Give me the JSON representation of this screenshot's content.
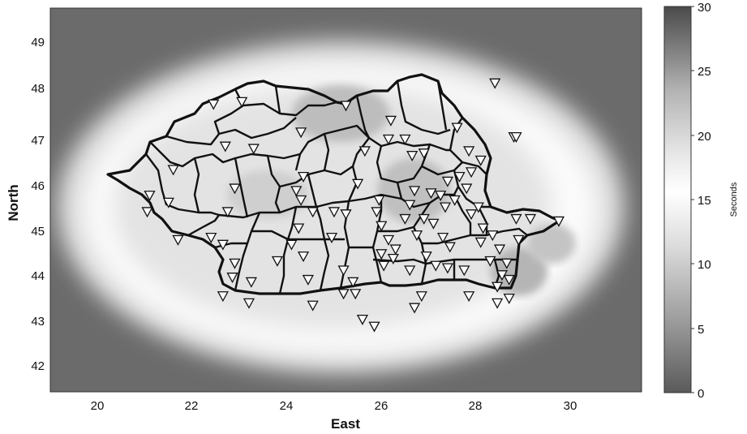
{
  "map": {
    "xlabel": "East",
    "ylabel": "North",
    "xlim": [
      19,
      31.5
    ],
    "ylim": [
      41.5,
      49.7
    ],
    "x_ticks": [
      "20",
      "22",
      "24",
      "26",
      "28",
      "30"
    ],
    "y_ticks": [
      "42",
      "43",
      "44",
      "45",
      "46",
      "47",
      "48",
      "49"
    ],
    "x_tick_values": [
      20,
      22,
      24,
      26,
      28,
      30
    ],
    "y_tick_values": [
      42,
      43,
      44,
      45,
      46,
      47,
      48,
      49
    ],
    "background_color": "#6b6b6b",
    "halo_color": "#f2f2f2",
    "border_color": "#111111",
    "colorbar": {
      "label": "Seconds",
      "range": [
        0,
        30
      ],
      "ticks": [
        "0",
        "5",
        "10",
        "15",
        "20",
        "25",
        "30"
      ],
      "tick_values": [
        0,
        5,
        10,
        15,
        20,
        25,
        30
      ]
    },
    "stations": [
      [
        22.45,
        47.65
      ],
      [
        23.05,
        47.7
      ],
      [
        25.25,
        47.62
      ],
      [
        26.2,
        47.3
      ],
      [
        24.3,
        47.05
      ],
      [
        23.3,
        46.7
      ],
      [
        22.7,
        46.75
      ],
      [
        21.6,
        46.25
      ],
      [
        21.1,
        45.7
      ],
      [
        21.5,
        45.55
      ],
      [
        21.05,
        45.35
      ],
      [
        21.7,
        44.75
      ],
      [
        22.4,
        44.8
      ],
      [
        22.65,
        44.65
      ],
      [
        22.9,
        44.25
      ],
      [
        22.85,
        43.95
      ],
      [
        23.25,
        43.85
      ],
      [
        22.65,
        43.55
      ],
      [
        23.2,
        43.4
      ],
      [
        22.9,
        45.85
      ],
      [
        22.75,
        45.35
      ],
      [
        24.35,
        46.1
      ],
      [
        24.2,
        45.8
      ],
      [
        24.3,
        45.6
      ],
      [
        24.55,
        45.35
      ],
      [
        24.25,
        45.0
      ],
      [
        24.1,
        44.65
      ],
      [
        24.35,
        44.4
      ],
      [
        23.8,
        44.3
      ],
      [
        24.45,
        43.9
      ],
      [
        24.55,
        43.35
      ],
      [
        25.0,
        45.35
      ],
      [
        25.25,
        45.3
      ],
      [
        24.95,
        44.8
      ],
      [
        25.2,
        44.1
      ],
      [
        25.4,
        43.85
      ],
      [
        25.45,
        43.6
      ],
      [
        25.2,
        43.6
      ],
      [
        25.5,
        45.95
      ],
      [
        25.65,
        46.65
      ],
      [
        25.6,
        43.05
      ],
      [
        25.85,
        42.9
      ],
      [
        25.95,
        45.6
      ],
      [
        25.9,
        45.35
      ],
      [
        26.0,
        45.05
      ],
      [
        26.15,
        44.75
      ],
      [
        26.0,
        44.45
      ],
      [
        26.25,
        44.35
      ],
      [
        26.05,
        44.2
      ],
      [
        26.15,
        46.9
      ],
      [
        26.5,
        46.9
      ],
      [
        26.65,
        46.55
      ],
      [
        26.9,
        46.6
      ],
      [
        26.7,
        45.8
      ],
      [
        26.6,
        45.5
      ],
      [
        26.5,
        45.2
      ],
      [
        26.9,
        45.2
      ],
      [
        26.75,
        44.85
      ],
      [
        26.3,
        44.55
      ],
      [
        26.85,
        43.55
      ],
      [
        26.7,
        43.3
      ],
      [
        27.05,
        45.75
      ],
      [
        27.25,
        45.7
      ],
      [
        27.35,
        45.45
      ],
      [
        27.1,
        45.1
      ],
      [
        27.3,
        44.8
      ],
      [
        27.45,
        44.6
      ],
      [
        27.15,
        44.2
      ],
      [
        27.4,
        44.15
      ],
      [
        27.6,
        47.15
      ],
      [
        27.85,
        46.65
      ],
      [
        28.1,
        46.45
      ],
      [
        27.9,
        46.2
      ],
      [
        27.65,
        46.1
      ],
      [
        27.4,
        46.0
      ],
      [
        27.8,
        45.85
      ],
      [
        28.05,
        45.45
      ],
      [
        27.55,
        45.6
      ],
      [
        27.9,
        45.3
      ],
      [
        28.15,
        45.0
      ],
      [
        28.35,
        44.85
      ],
      [
        28.1,
        44.7
      ],
      [
        28.5,
        44.55
      ],
      [
        28.3,
        44.3
      ],
      [
        28.65,
        44.25
      ],
      [
        28.55,
        44.0
      ],
      [
        28.7,
        43.9
      ],
      [
        28.45,
        43.75
      ],
      [
        28.7,
        43.5
      ],
      [
        28.45,
        43.4
      ],
      [
        27.85,
        43.55
      ],
      [
        27.75,
        44.1
      ],
      [
        28.8,
        46.95
      ],
      [
        28.85,
        46.95
      ],
      [
        28.4,
        48.1
      ],
      [
        28.85,
        45.2
      ],
      [
        29.15,
        45.2
      ],
      [
        29.75,
        45.15
      ],
      [
        28.9,
        44.75
      ],
      [
        26.95,
        44.4
      ],
      [
        26.6,
        44.1
      ]
    ]
  }
}
